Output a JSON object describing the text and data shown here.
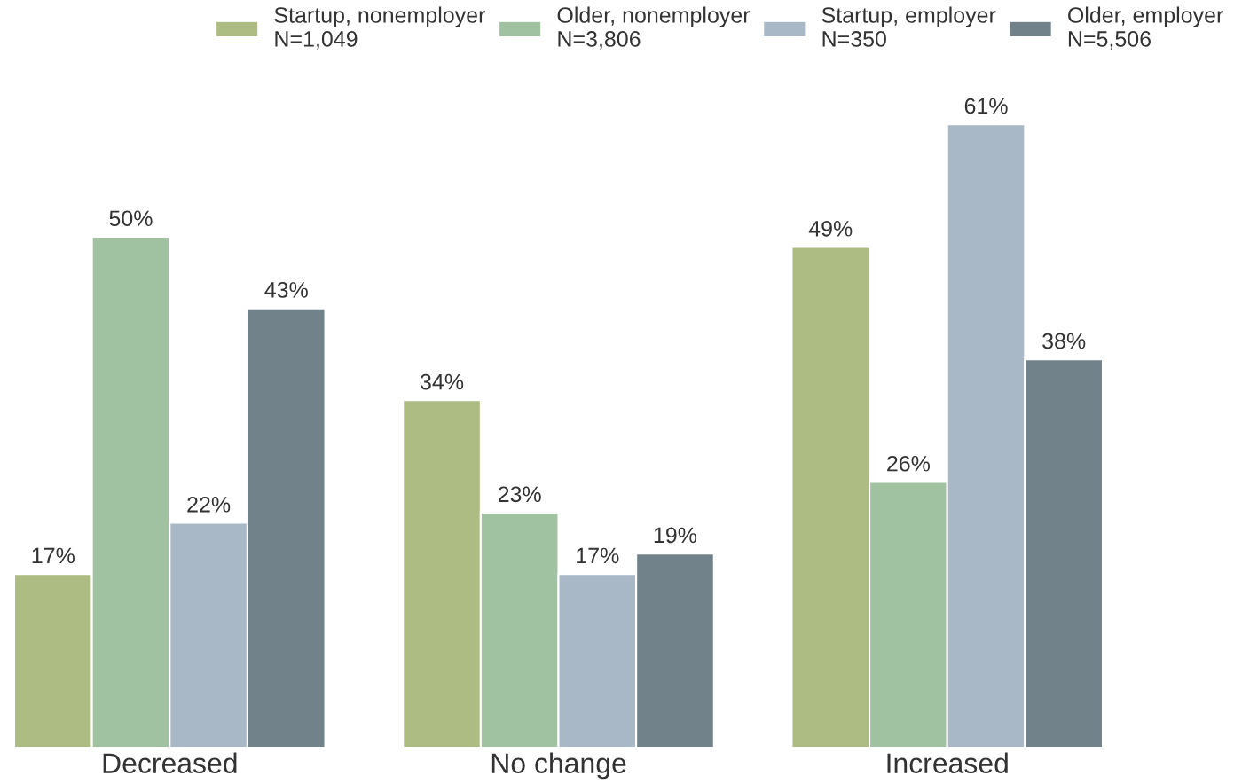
{
  "chart_data": {
    "type": "bar",
    "categories": [
      "Decreased",
      "No change",
      "Increased"
    ],
    "series": [
      {
        "name": "Startup, nonemployer\nN=1,049",
        "color": "#adbc82",
        "values": [
          17,
          34,
          49
        ],
        "value_labels": [
          "17%",
          "34%",
          "49%"
        ]
      },
      {
        "name": "Older, nonemployer\nN=3,806",
        "color": "#a1c2a1",
        "values": [
          50,
          23,
          26
        ],
        "value_labels": [
          "50%",
          "23%",
          "26%"
        ]
      },
      {
        "name": "Startup, employer\nN=350",
        "color": "#a9b8c6",
        "values": [
          22,
          17,
          61
        ],
        "value_labels": [
          "22%",
          "17%",
          "61%"
        ]
      },
      {
        "name": "Older, employer\nN=5,506",
        "color": "#72828a",
        "values": [
          43,
          19,
          38
        ],
        "value_labels": [
          "43%",
          "19%",
          "38%"
        ]
      }
    ],
    "legend": "top",
    "grid": false,
    "tick_labels": "x"
  }
}
